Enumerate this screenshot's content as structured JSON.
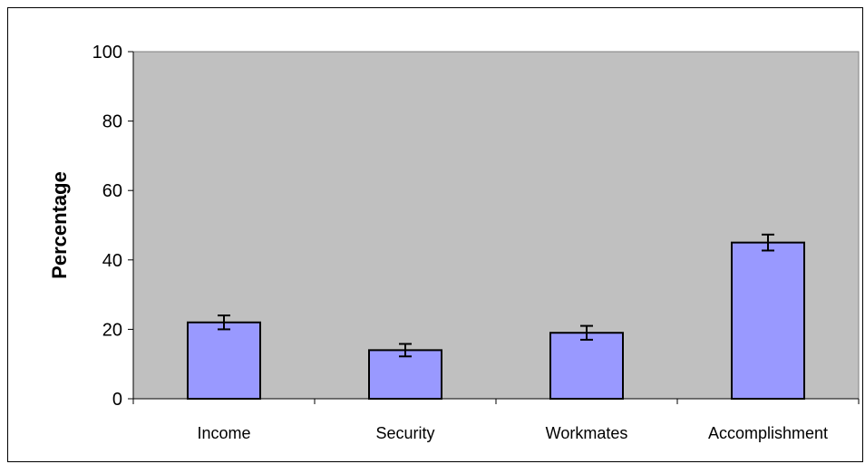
{
  "chart_data": {
    "type": "bar",
    "title": "",
    "xlabel": "",
    "ylabel": "Percentage",
    "ylim": [
      0,
      100
    ],
    "yticks": [
      0,
      20,
      40,
      60,
      80,
      100
    ],
    "categories": [
      "Income",
      "Security",
      "Workmates",
      "Accomplishment"
    ],
    "values": [
      22,
      14,
      19,
      45
    ],
    "error": [
      2,
      1.8,
      2,
      2.3
    ],
    "grid": false,
    "legend": "none",
    "colors": {
      "plot_background": "#c0c0c0",
      "bar_fill": "#9999ff",
      "bar_stroke": "#000000"
    }
  }
}
